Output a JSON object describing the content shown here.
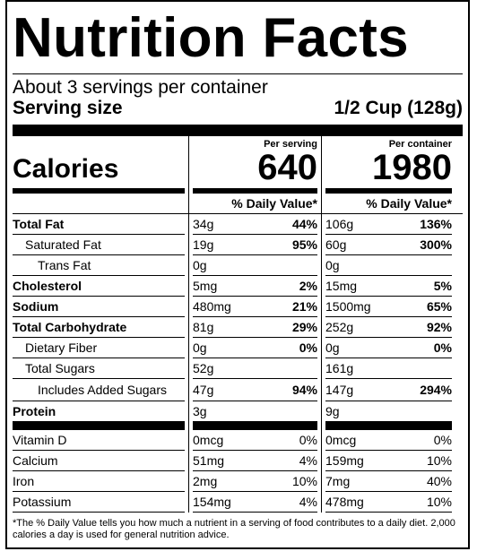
{
  "title": "Nutrition Facts",
  "servings_per_container": "About 3 servings per container",
  "serving_size_label": "Serving size",
  "serving_size_value": "1/2 Cup (128g)",
  "per_serving_header": "Per serving",
  "per_container_header": "Per container",
  "calories_label": "Calories",
  "calories_per_serving": "640",
  "calories_per_container": "1980",
  "daily_value_header": "% Daily Value*",
  "nutrients": [
    {
      "name": "Total Fat",
      "serving_amount": "34g",
      "serving_dv": "44%",
      "container_amount": "106g",
      "container_dv": "136%"
    },
    {
      "name": "Saturated Fat",
      "serving_amount": "19g",
      "serving_dv": "95%",
      "container_amount": "60g",
      "container_dv": "300%"
    },
    {
      "name": "Trans Fat",
      "serving_amount": "0g",
      "serving_dv": "",
      "container_amount": "0g",
      "container_dv": ""
    },
    {
      "name": "Cholesterol",
      "serving_amount": "5mg",
      "serving_dv": "2%",
      "container_amount": "15mg",
      "container_dv": "5%"
    },
    {
      "name": "Sodium",
      "serving_amount": "480mg",
      "serving_dv": "21%",
      "container_amount": "1500mg",
      "container_dv": "65%"
    },
    {
      "name": "Total Carbohydrate",
      "serving_amount": "81g",
      "serving_dv": "29%",
      "container_amount": "252g",
      "container_dv": "92%"
    },
    {
      "name": "Dietary Fiber",
      "serving_amount": "0g",
      "serving_dv": "0%",
      "container_amount": "0g",
      "container_dv": "0%"
    },
    {
      "name": "Total Sugars",
      "serving_amount": "52g",
      "serving_dv": "",
      "container_amount": "161g",
      "container_dv": ""
    },
    {
      "name": "Includes Added Sugars",
      "serving_amount": "47g",
      "serving_dv": "94%",
      "container_amount": "147g",
      "container_dv": "294%"
    },
    {
      "name": "Protein",
      "serving_amount": "3g",
      "serving_dv": "",
      "container_amount": "9g",
      "container_dv": ""
    }
  ],
  "vitamins": [
    {
      "name": "Vitamin D",
      "serving_amount": "0mcg",
      "serving_dv": "0%",
      "container_amount": "0mcg",
      "container_dv": "0%"
    },
    {
      "name": "Calcium",
      "serving_amount": "51mg",
      "serving_dv": "4%",
      "container_amount": "159mg",
      "container_dv": "10%"
    },
    {
      "name": "Iron",
      "serving_amount": "2mg",
      "serving_dv": "10%",
      "container_amount": "7mg",
      "container_dv": "40%"
    },
    {
      "name": "Potassium",
      "serving_amount": "154mg",
      "serving_dv": "4%",
      "container_amount": "478mg",
      "container_dv": "10%"
    }
  ],
  "footnote": "*The % Daily Value tells you how much a nutrient in a serving of food contributes to a daily diet. 2,000 calories a day is used for general nutrition advice."
}
